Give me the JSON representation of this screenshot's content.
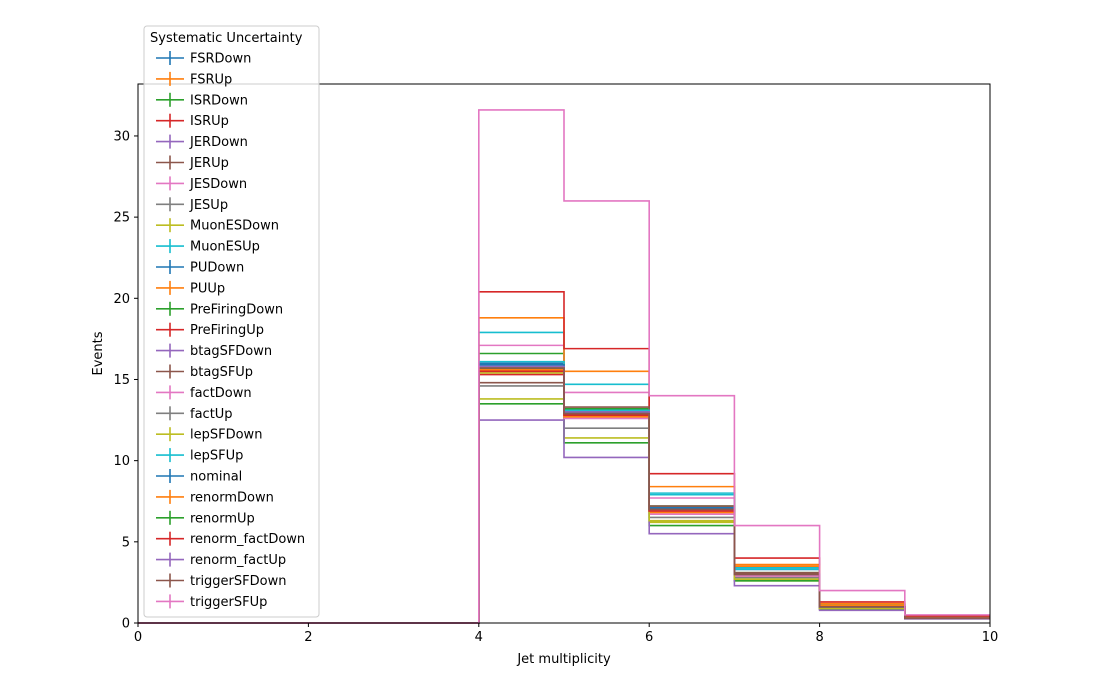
{
  "chart_data": {
    "type": "step-histogram",
    "xlabel": "Jet multiplicity",
    "ylabel": "Events",
    "xlim": [
      0,
      10
    ],
    "ylim": [
      0,
      33.2
    ],
    "x_ticks": [
      0,
      2,
      4,
      6,
      8,
      10
    ],
    "y_ticks": [
      0,
      5,
      10,
      15,
      20,
      25,
      30
    ],
    "bin_edges": [
      0,
      1,
      2,
      3,
      4,
      5,
      6,
      7,
      8,
      9,
      10
    ],
    "grid": false,
    "legend": {
      "title": "Systematic Uncertainty",
      "placement": "upper-left outside plot"
    },
    "series": [
      {
        "name": "FSRDown",
        "color": "#1f77b4",
        "values": [
          0,
          0,
          0,
          0,
          15.8,
          12.9,
          7.0,
          3.0,
          1.0,
          0.3
        ]
      },
      {
        "name": "FSRUp",
        "color": "#ff7f0e",
        "values": [
          0,
          0,
          0,
          0,
          15.5,
          12.8,
          6.8,
          2.9,
          0.95,
          0.3
        ]
      },
      {
        "name": "ISRDown",
        "color": "#2ca02c",
        "values": [
          0,
          0,
          0,
          0,
          16.6,
          13.2,
          7.2,
          3.1,
          1.0,
          0.32
        ]
      },
      {
        "name": "ISRUp",
        "color": "#d62728",
        "values": [
          0,
          0,
          0,
          0,
          15.3,
          12.7,
          6.9,
          3.0,
          0.98,
          0.3
        ]
      },
      {
        "name": "JERDown",
        "color": "#9467bd",
        "values": [
          0,
          0,
          0,
          0,
          15.9,
          13.0,
          7.1,
          3.0,
          1.0,
          0.3
        ]
      },
      {
        "name": "JERUp",
        "color": "#8c564b",
        "values": [
          0,
          0,
          0,
          0,
          15.7,
          12.9,
          7.0,
          3.0,
          1.0,
          0.3
        ]
      },
      {
        "name": "JESDown",
        "color": "#e377c2",
        "values": [
          0,
          0,
          0,
          0,
          17.1,
          14.2,
          7.7,
          3.3,
          1.1,
          0.34
        ]
      },
      {
        "name": "JESUp",
        "color": "#7f7f7f",
        "values": [
          0,
          0,
          0,
          0,
          14.6,
          12.0,
          6.5,
          2.8,
          0.9,
          0.28
        ]
      },
      {
        "name": "MuonESDown",
        "color": "#bcbd22",
        "values": [
          0,
          0,
          0,
          0,
          13.8,
          11.4,
          6.2,
          2.6,
          0.88,
          0.27
        ]
      },
      {
        "name": "MuonESUp",
        "color": "#17becf",
        "values": [
          0,
          0,
          0,
          0,
          17.9,
          14.7,
          8.0,
          3.4,
          1.15,
          0.36
        ]
      },
      {
        "name": "PUDown",
        "color": "#1f77b4",
        "values": [
          0,
          0,
          0,
          0,
          16.0,
          13.0,
          7.1,
          3.05,
          1.0,
          0.31
        ]
      },
      {
        "name": "PUUp",
        "color": "#ff7f0e",
        "values": [
          0,
          0,
          0,
          0,
          18.8,
          15.5,
          8.4,
          3.6,
          1.2,
          0.38
        ]
      },
      {
        "name": "PreFiringDown",
        "color": "#2ca02c",
        "values": [
          0,
          0,
          0,
          0,
          13.5,
          11.1,
          6.0,
          2.6,
          0.85,
          0.27
        ]
      },
      {
        "name": "PreFiringUp",
        "color": "#d62728",
        "values": [
          0,
          0,
          0,
          0,
          20.4,
          16.9,
          9.2,
          4.0,
          1.3,
          0.42
        ]
      },
      {
        "name": "btagSFDown",
        "color": "#9467bd",
        "values": [
          0,
          0,
          0,
          0,
          12.5,
          10.2,
          5.5,
          2.3,
          0.78,
          0.25
        ]
      },
      {
        "name": "btagSFUp",
        "color": "#8c564b",
        "values": [
          0,
          0,
          0,
          0,
          14.8,
          13.3,
          7.2,
          3.1,
          1.0,
          0.32
        ]
      },
      {
        "name": "factDown",
        "color": "#e377c2",
        "values": [
          0,
          0,
          0,
          0,
          15.6,
          12.6,
          6.7,
          2.9,
          0.95,
          0.3
        ]
      },
      {
        "name": "factUp",
        "color": "#7f7f7f",
        "values": [
          0,
          0,
          0,
          0,
          15.9,
          13.0,
          7.0,
          3.0,
          1.0,
          0.31
        ]
      },
      {
        "name": "lepSFDown",
        "color": "#bcbd22",
        "values": [
          0,
          0,
          0,
          0,
          15.4,
          12.8,
          6.3,
          2.7,
          0.9,
          0.29
        ]
      },
      {
        "name": "lepSFUp",
        "color": "#17becf",
        "values": [
          0,
          0,
          0,
          0,
          16.1,
          13.1,
          7.9,
          3.3,
          1.1,
          0.33
        ]
      },
      {
        "name": "nominal",
        "color": "#1f77b4",
        "values": [
          0,
          0,
          0,
          0,
          15.9,
          13.0,
          7.0,
          3.0,
          1.0,
          0.3
        ]
      },
      {
        "name": "renormDown",
        "color": "#ff7f0e",
        "values": [
          0,
          0,
          0,
          0,
          15.6,
          12.7,
          6.9,
          3.5,
          1.1,
          0.33
        ]
      },
      {
        "name": "renormUp",
        "color": "#2ca02c",
        "values": [
          0,
          0,
          0,
          0,
          15.7,
          12.9,
          7.0,
          3.0,
          1.0,
          0.3
        ]
      },
      {
        "name": "renorm_factDown",
        "color": "#d62728",
        "values": [
          0,
          0,
          0,
          0,
          15.5,
          12.8,
          6.9,
          3.0,
          1.0,
          0.3
        ]
      },
      {
        "name": "renorm_factUp",
        "color": "#9467bd",
        "values": [
          0,
          0,
          0,
          0,
          15.8,
          13.0,
          7.0,
          3.0,
          1.0,
          0.3
        ]
      },
      {
        "name": "triggerSFDown",
        "color": "#8c564b",
        "values": [
          0,
          0,
          0,
          0,
          15.7,
          12.9,
          7.0,
          3.0,
          1.0,
          0.3
        ]
      },
      {
        "name": "triggerSFUp",
        "color": "#e377c2",
        "values": [
          0,
          0,
          0,
          0,
          31.6,
          26.0,
          14.0,
          6.0,
          2.0,
          0.5
        ]
      }
    ]
  }
}
